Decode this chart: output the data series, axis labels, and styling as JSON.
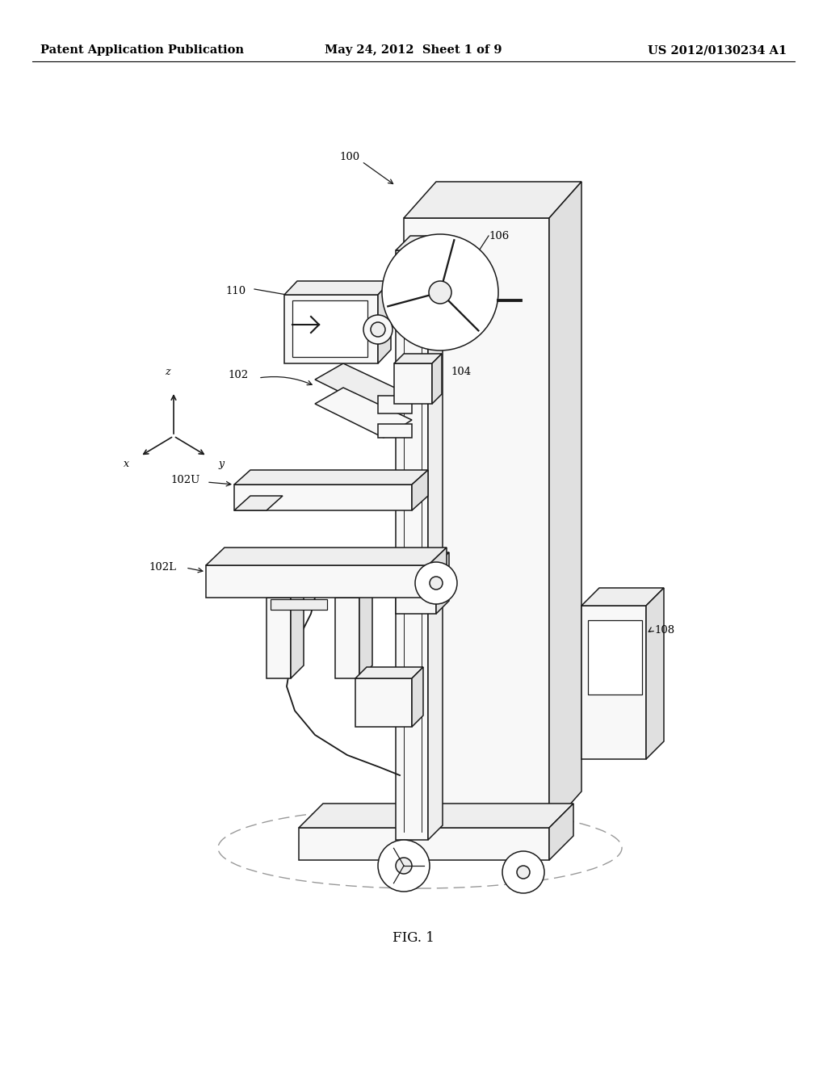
{
  "bg_color": "#ffffff",
  "header_left": "Patent Application Publication",
  "header_mid": "May 24, 2012  Sheet 1 of 9",
  "header_right": "US 2012/0130234 A1",
  "fig_label": "FIG. 1",
  "header_fontsize": 10.5,
  "fig_label_fontsize": 12,
  "line_color": "#1a1a1a",
  "line_width": 1.1
}
